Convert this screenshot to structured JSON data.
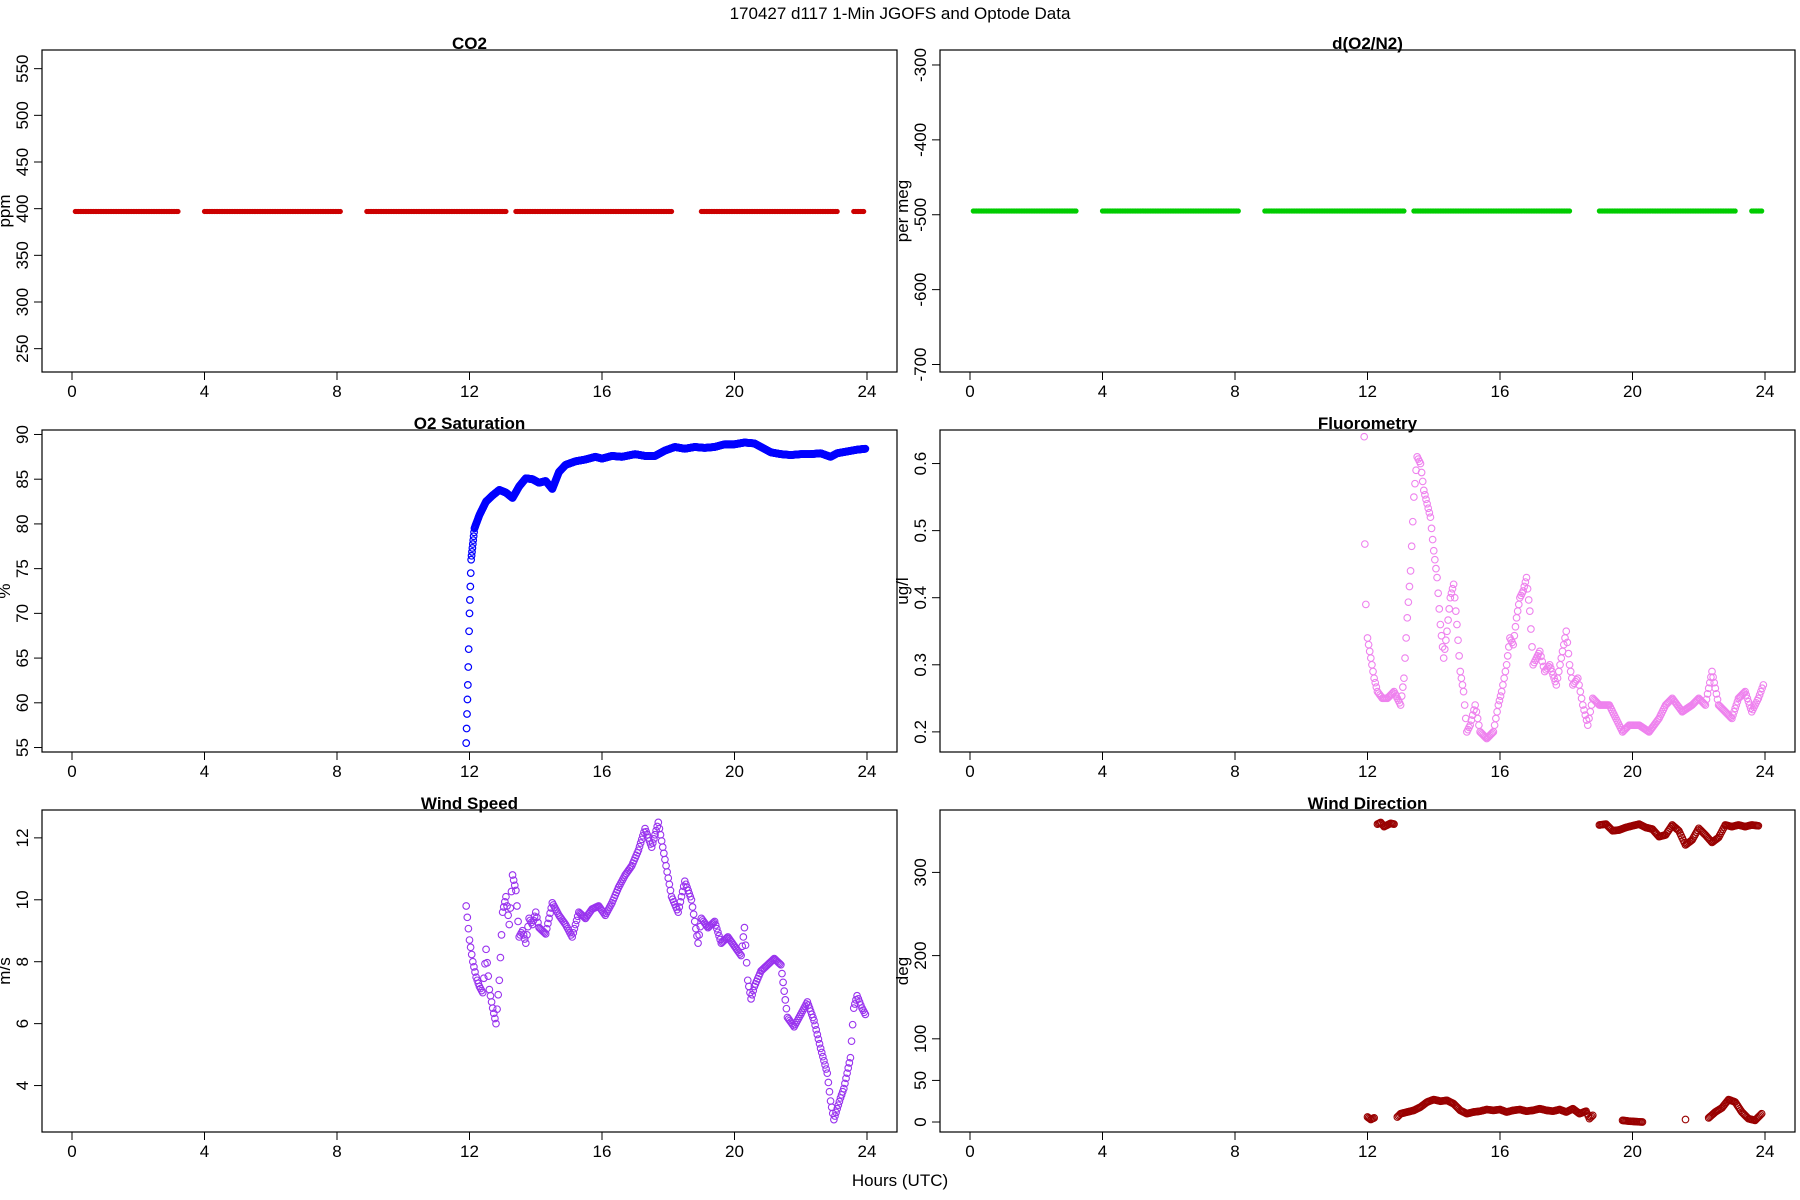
{
  "figure": {
    "title": "170427   d117   1-Min  JGOFS and Optode Data",
    "xlabel": "Hours (UTC)"
  },
  "chart_data": [
    {
      "id": "co2",
      "type": "scatter",
      "title": "CO2",
      "ylabel": "ppm",
      "color": "#cc0000",
      "marker": "dot",
      "xlim": [
        0,
        24
      ],
      "ylim": [
        225,
        570
      ],
      "xticks": [
        0,
        4,
        8,
        12,
        16,
        20,
        24
      ],
      "yticks": [
        250,
        300,
        350,
        400,
        450,
        500,
        550
      ],
      "points": [
        [
          0.1,
          397
        ],
        [
          3.2,
          397
        ],
        [
          4.0,
          397
        ],
        [
          8.1,
          397
        ],
        [
          8.9,
          397
        ],
        [
          13.1,
          397
        ],
        [
          13.4,
          397
        ],
        [
          18.1,
          397
        ],
        [
          19.0,
          397
        ],
        [
          23.1,
          397
        ],
        [
          23.6,
          397
        ],
        [
          23.9,
          397
        ]
      ],
      "note_segments": [
        [
          0.1,
          3.2
        ],
        [
          4.0,
          8.1
        ],
        [
          8.9,
          13.1
        ],
        [
          13.4,
          18.1
        ],
        [
          19.0,
          23.1
        ],
        [
          23.6,
          23.9
        ]
      ]
    },
    {
      "id": "do2n2",
      "type": "scatter",
      "title": "d(O2/N2)",
      "ylabel": "per meg",
      "color": "#00cc00",
      "marker": "dot",
      "xlim": [
        0,
        24
      ],
      "ylim": [
        -710,
        -280
      ],
      "xticks": [
        0,
        4,
        8,
        12,
        16,
        20,
        24
      ],
      "yticks": [
        -700,
        -600,
        -500,
        -400,
        -300
      ],
      "segments": [
        [
          0.1,
          3.2
        ],
        [
          4.0,
          8.1
        ],
        [
          8.9,
          13.1
        ],
        [
          13.4,
          18.1
        ],
        [
          19.0,
          23.1
        ],
        [
          23.6,
          23.9
        ]
      ],
      "value": -495
    },
    {
      "id": "o2sat",
      "type": "scatter",
      "title": "O2 Saturation",
      "ylabel": "%",
      "color": "#0000ff",
      "marker": "circle",
      "xlim": [
        0,
        24
      ],
      "ylim": [
        54.5,
        90.5
      ],
      "xticks": [
        0,
        4,
        8,
        12,
        16,
        20,
        24
      ],
      "yticks": [
        55,
        60,
        65,
        70,
        75,
        80,
        85,
        90
      ],
      "points": [
        [
          11.9,
          55.5
        ],
        [
          11.95,
          62
        ],
        [
          12.0,
          70
        ],
        [
          12.05,
          76
        ],
        [
          12.15,
          79.5
        ],
        [
          12.3,
          81
        ],
        [
          12.5,
          82.5
        ],
        [
          12.7,
          83.2
        ],
        [
          12.9,
          83.8
        ],
        [
          13.1,
          83.5
        ],
        [
          13.3,
          82.9
        ],
        [
          13.5,
          84.2
        ],
        [
          13.7,
          85.1
        ],
        [
          13.9,
          85.0
        ],
        [
          14.1,
          84.6
        ],
        [
          14.3,
          84.8
        ],
        [
          14.5,
          83.9
        ],
        [
          14.7,
          85.8
        ],
        [
          14.9,
          86.6
        ],
        [
          15.2,
          87.0
        ],
        [
          15.5,
          87.2
        ],
        [
          15.8,
          87.5
        ],
        [
          16.0,
          87.3
        ],
        [
          16.3,
          87.6
        ],
        [
          16.6,
          87.5
        ],
        [
          17.0,
          87.8
        ],
        [
          17.3,
          87.6
        ],
        [
          17.6,
          87.6
        ],
        [
          17.9,
          88.2
        ],
        [
          18.2,
          88.6
        ],
        [
          18.5,
          88.4
        ],
        [
          18.8,
          88.6
        ],
        [
          19.1,
          88.5
        ],
        [
          19.4,
          88.6
        ],
        [
          19.7,
          88.9
        ],
        [
          20.0,
          88.9
        ],
        [
          20.3,
          89.1
        ],
        [
          20.6,
          89.0
        ],
        [
          20.9,
          88.4
        ],
        [
          21.1,
          88.0
        ],
        [
          21.4,
          87.8
        ],
        [
          21.7,
          87.7
        ],
        [
          22.0,
          87.8
        ],
        [
          22.3,
          87.8
        ],
        [
          22.6,
          87.9
        ],
        [
          22.9,
          87.5
        ],
        [
          23.1,
          87.9
        ],
        [
          23.4,
          88.1
        ],
        [
          23.7,
          88.3
        ],
        [
          23.95,
          88.4
        ]
      ]
    },
    {
      "id": "fluor",
      "type": "scatter",
      "title": "Fluorometry",
      "ylabel": "ug/l",
      "color": "#ee82ee",
      "marker": "circle",
      "xlim": [
        0,
        24
      ],
      "ylim": [
        0.17,
        0.65
      ],
      "xticks": [
        0,
        4,
        8,
        12,
        16,
        20,
        24
      ],
      "yticks": [
        0.2,
        0.3,
        0.4,
        0.5,
        0.6
      ],
      "points": [
        [
          11.9,
          0.64
        ],
        [
          11.92,
          0.48
        ],
        [
          11.95,
          0.39
        ],
        [
          12.0,
          0.34
        ],
        [
          12.1,
          0.31
        ],
        [
          12.2,
          0.28
        ],
        [
          12.3,
          0.26
        ],
        [
          12.45,
          0.25
        ],
        [
          12.6,
          0.25
        ],
        [
          12.8,
          0.26
        ],
        [
          13.0,
          0.24
        ],
        [
          13.1,
          0.28
        ],
        [
          13.2,
          0.37
        ],
        [
          13.3,
          0.44
        ],
        [
          13.4,
          0.55
        ],
        [
          13.5,
          0.61
        ],
        [
          13.6,
          0.6
        ],
        [
          13.7,
          0.56
        ],
        [
          13.8,
          0.54
        ],
        [
          13.9,
          0.52
        ],
        [
          14.0,
          0.47
        ],
        [
          14.1,
          0.43
        ],
        [
          14.2,
          0.36
        ],
        [
          14.3,
          0.31
        ],
        [
          14.4,
          0.35
        ],
        [
          14.5,
          0.4
        ],
        [
          14.6,
          0.42
        ],
        [
          14.7,
          0.36
        ],
        [
          14.8,
          0.29
        ],
        [
          14.9,
          0.26
        ],
        [
          15.0,
          0.2
        ],
        [
          15.1,
          0.21
        ],
        [
          15.25,
          0.24
        ],
        [
          15.4,
          0.2
        ],
        [
          15.6,
          0.19
        ],
        [
          15.8,
          0.2
        ],
        [
          15.95,
          0.24
        ],
        [
          16.05,
          0.26
        ],
        [
          16.2,
          0.3
        ],
        [
          16.3,
          0.34
        ],
        [
          16.4,
          0.33
        ],
        [
          16.5,
          0.37
        ],
        [
          16.6,
          0.4
        ],
        [
          16.7,
          0.41
        ],
        [
          16.8,
          0.43
        ],
        [
          16.9,
          0.38
        ],
        [
          17.0,
          0.3
        ],
        [
          17.1,
          0.31
        ],
        [
          17.2,
          0.32
        ],
        [
          17.35,
          0.29
        ],
        [
          17.5,
          0.3
        ],
        [
          17.7,
          0.27
        ],
        [
          17.85,
          0.31
        ],
        [
          18.0,
          0.35
        ],
        [
          18.1,
          0.3
        ],
        [
          18.2,
          0.27
        ],
        [
          18.35,
          0.28
        ],
        [
          18.5,
          0.24
        ],
        [
          18.65,
          0.21
        ],
        [
          18.8,
          0.25
        ],
        [
          19.0,
          0.24
        ],
        [
          19.3,
          0.24
        ],
        [
          19.5,
          0.22
        ],
        [
          19.7,
          0.2
        ],
        [
          19.9,
          0.21
        ],
        [
          20.2,
          0.21
        ],
        [
          20.5,
          0.2
        ],
        [
          20.8,
          0.22
        ],
        [
          21.0,
          0.24
        ],
        [
          21.2,
          0.25
        ],
        [
          21.5,
          0.23
        ],
        [
          21.8,
          0.24
        ],
        [
          22.0,
          0.25
        ],
        [
          22.2,
          0.24
        ],
        [
          22.4,
          0.29
        ],
        [
          22.6,
          0.24
        ],
        [
          22.8,
          0.23
        ],
        [
          23.0,
          0.22
        ],
        [
          23.2,
          0.25
        ],
        [
          23.4,
          0.26
        ],
        [
          23.6,
          0.23
        ],
        [
          23.8,
          0.25
        ],
        [
          23.95,
          0.27
        ]
      ]
    },
    {
      "id": "windspeed",
      "type": "scatter",
      "title": "Wind Speed",
      "ylabel": "m/s",
      "color": "#9933ee",
      "marker": "circle",
      "xlim": [
        0,
        24
      ],
      "ylim": [
        2.5,
        12.9
      ],
      "xticks": [
        0,
        4,
        8,
        12,
        16,
        20,
        24
      ],
      "yticks": [
        4,
        6,
        8,
        10,
        12
      ],
      "points": [
        [
          11.9,
          9.8
        ],
        [
          12.0,
          8.7
        ],
        [
          12.1,
          8.0
        ],
        [
          12.2,
          7.5
        ],
        [
          12.3,
          7.2
        ],
        [
          12.4,
          7.0
        ],
        [
          12.5,
          8.4
        ],
        [
          12.6,
          7.1
        ],
        [
          12.7,
          6.5
        ],
        [
          12.8,
          6.0
        ],
        [
          12.9,
          7.4
        ],
        [
          13.0,
          9.6
        ],
        [
          13.1,
          10.1
        ],
        [
          13.2,
          9.2
        ],
        [
          13.3,
          10.8
        ],
        [
          13.4,
          10.3
        ],
        [
          13.5,
          8.8
        ],
        [
          13.6,
          9.0
        ],
        [
          13.7,
          8.6
        ],
        [
          13.8,
          9.4
        ],
        [
          13.9,
          9.2
        ],
        [
          14.0,
          9.6
        ],
        [
          14.1,
          9.1
        ],
        [
          14.3,
          8.9
        ],
        [
          14.5,
          9.9
        ],
        [
          14.7,
          9.5
        ],
        [
          14.9,
          9.2
        ],
        [
          15.1,
          8.8
        ],
        [
          15.3,
          9.6
        ],
        [
          15.5,
          9.4
        ],
        [
          15.7,
          9.7
        ],
        [
          15.9,
          9.8
        ],
        [
          16.1,
          9.5
        ],
        [
          16.3,
          9.9
        ],
        [
          16.5,
          10.4
        ],
        [
          16.7,
          10.8
        ],
        [
          16.9,
          11.1
        ],
        [
          17.1,
          11.6
        ],
        [
          17.3,
          12.3
        ],
        [
          17.5,
          11.7
        ],
        [
          17.7,
          12.5
        ],
        [
          17.9,
          11.3
        ],
        [
          18.0,
          10.7
        ],
        [
          18.1,
          10.1
        ],
        [
          18.3,
          9.6
        ],
        [
          18.5,
          10.6
        ],
        [
          18.7,
          10.0
        ],
        [
          18.9,
          8.6
        ],
        [
          19.0,
          9.4
        ],
        [
          19.2,
          9.1
        ],
        [
          19.4,
          9.3
        ],
        [
          19.6,
          8.6
        ],
        [
          19.8,
          8.8
        ],
        [
          20.0,
          8.5
        ],
        [
          20.2,
          8.2
        ],
        [
          20.3,
          9.1
        ],
        [
          20.4,
          7.4
        ],
        [
          20.5,
          6.8
        ],
        [
          20.6,
          7.2
        ],
        [
          20.8,
          7.7
        ],
        [
          21.0,
          7.9
        ],
        [
          21.2,
          8.1
        ],
        [
          21.4,
          7.9
        ],
        [
          21.6,
          6.2
        ],
        [
          21.8,
          5.9
        ],
        [
          22.0,
          6.3
        ],
        [
          22.2,
          6.7
        ],
        [
          22.4,
          6.1
        ],
        [
          22.6,
          5.2
        ],
        [
          22.8,
          4.4
        ],
        [
          22.9,
          3.5
        ],
        [
          23.0,
          2.9
        ],
        [
          23.2,
          3.6
        ],
        [
          23.3,
          3.9
        ],
        [
          23.5,
          4.9
        ],
        [
          23.6,
          6.5
        ],
        [
          23.7,
          6.9
        ],
        [
          23.85,
          6.5
        ],
        [
          23.95,
          6.3
        ]
      ]
    },
    {
      "id": "winddir",
      "type": "scatter",
      "title": "Wind Direction",
      "ylabel": "deg",
      "color": "#990000",
      "marker": "circle",
      "xlim": [
        0,
        24
      ],
      "ylim": [
        -12,
        375
      ],
      "xticks": [
        0,
        4,
        8,
        12,
        16,
        20,
        24
      ],
      "yticks": [
        0,
        50,
        100,
        200,
        300
      ],
      "points": [
        [
          12.0,
          6
        ],
        [
          12.1,
          3
        ],
        [
          12.2,
          5
        ],
        [
          12.3,
          358
        ],
        [
          12.4,
          360
        ],
        [
          12.5,
          355
        ],
        [
          12.6,
          357
        ],
        [
          12.7,
          359
        ],
        [
          12.8,
          358
        ],
        [
          12.9,
          6
        ],
        [
          13.0,
          10
        ],
        [
          13.2,
          12
        ],
        [
          13.4,
          14
        ],
        [
          13.6,
          18
        ],
        [
          13.8,
          24
        ],
        [
          14.0,
          27
        ],
        [
          14.2,
          25
        ],
        [
          14.4,
          26
        ],
        [
          14.6,
          22
        ],
        [
          14.8,
          14
        ],
        [
          15.0,
          10
        ],
        [
          15.2,
          12
        ],
        [
          15.4,
          13
        ],
        [
          15.6,
          15
        ],
        [
          15.8,
          14
        ],
        [
          16.0,
          15
        ],
        [
          16.2,
          12
        ],
        [
          16.4,
          14
        ],
        [
          16.6,
          15
        ],
        [
          16.8,
          13
        ],
        [
          17.0,
          14
        ],
        [
          17.2,
          16
        ],
        [
          17.4,
          14
        ],
        [
          17.6,
          13
        ],
        [
          17.8,
          15
        ],
        [
          18.0,
          12
        ],
        [
          18.2,
          16
        ],
        [
          18.4,
          10
        ],
        [
          18.6,
          13
        ],
        [
          18.8,
          8
        ],
        [
          18.7,
          4
        ],
        [
          19.0,
          357
        ],
        [
          19.2,
          358
        ],
        [
          19.4,
          350
        ],
        [
          19.6,
          351
        ],
        [
          19.8,
          354
        ],
        [
          20.0,
          356
        ],
        [
          20.2,
          358
        ],
        [
          20.4,
          354
        ],
        [
          20.6,
          352
        ],
        [
          20.8,
          343
        ],
        [
          21.0,
          345
        ],
        [
          21.2,
          357
        ],
        [
          21.4,
          350
        ],
        [
          21.6,
          333
        ],
        [
          21.8,
          339
        ],
        [
          22.0,
          353
        ],
        [
          22.2,
          345
        ],
        [
          22.4,
          336
        ],
        [
          22.6,
          342
        ],
        [
          22.8,
          357
        ],
        [
          23.0,
          355
        ],
        [
          23.2,
          357
        ],
        [
          23.4,
          355
        ],
        [
          23.6,
          357
        ],
        [
          23.8,
          356
        ],
        [
          19.7,
          2
        ],
        [
          19.9,
          1
        ],
        [
          20.3,
          0
        ],
        [
          21.6,
          3
        ],
        [
          22.3,
          5
        ],
        [
          22.5,
          12
        ],
        [
          22.7,
          17
        ],
        [
          22.9,
          27
        ],
        [
          23.1,
          24
        ],
        [
          23.3,
          12
        ],
        [
          23.5,
          4
        ],
        [
          23.7,
          2
        ],
        [
          23.9,
          10
        ]
      ]
    }
  ]
}
